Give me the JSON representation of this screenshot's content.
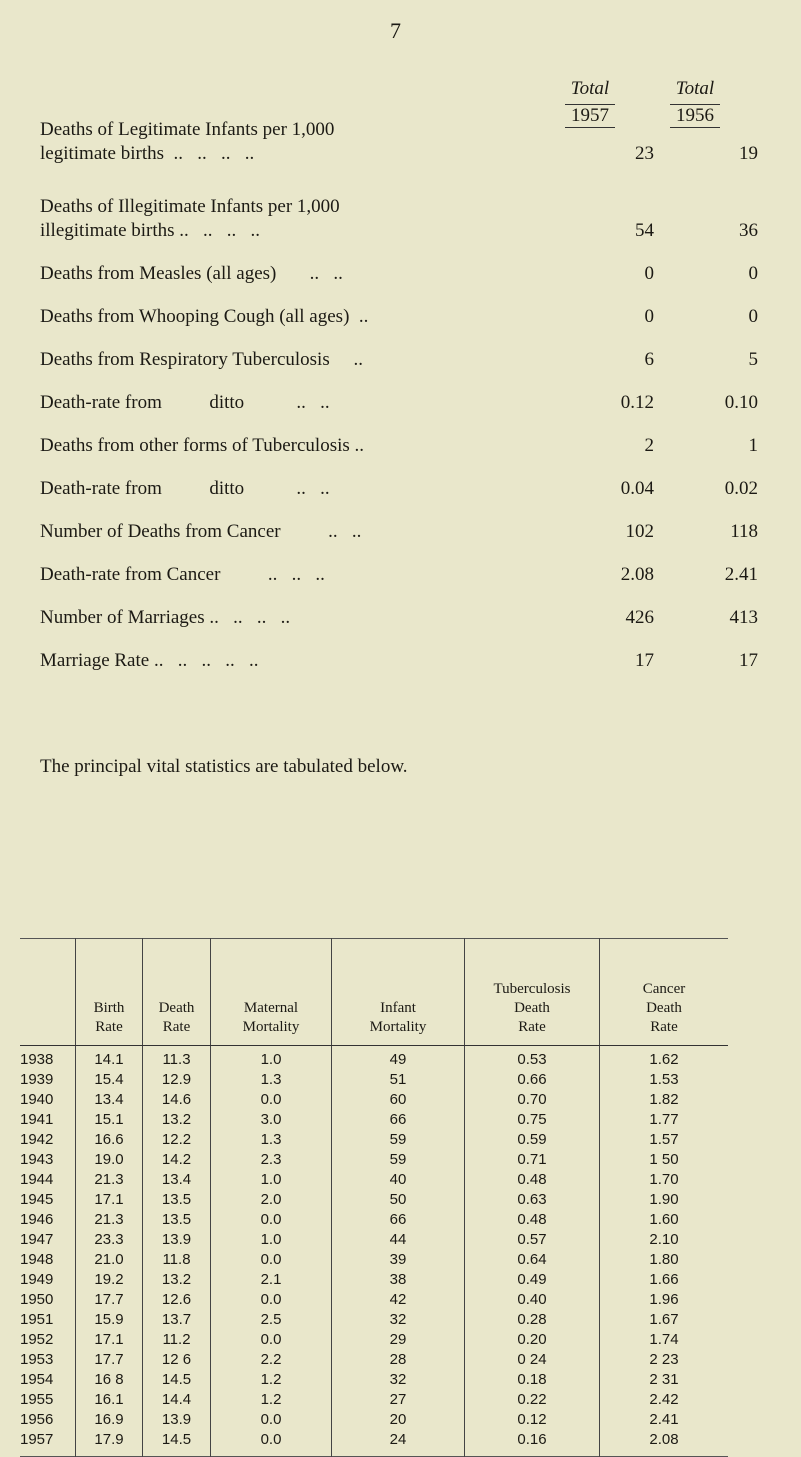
{
  "page_number": "7",
  "summary": {
    "columns": [
      {
        "label": "Total",
        "year": "1957"
      },
      {
        "label": "Total",
        "year": "1956"
      }
    ],
    "rows": [
      {
        "label_line1": "Deaths of Legitimate Infants per 1,000",
        "label": "legitimate births  ..   ..   ..   ..",
        "v1957": "23",
        "v1956": "19"
      },
      {
        "label_line1": "Deaths of Illegitimate Infants per 1,000",
        "label": "illegitimate births ..   ..   ..   ..",
        "v1957": "54",
        "v1956": "36"
      },
      {
        "label": "Deaths from Measles (all ages)       ..   ..",
        "v1957": "0",
        "v1956": "0"
      },
      {
        "label": "Deaths from Whooping Cough (all ages)  ..",
        "v1957": "0",
        "v1956": "0"
      },
      {
        "label": "Deaths from Respiratory Tuberculosis     ..",
        "v1957": "6",
        "v1956": "5"
      },
      {
        "label": "Death-rate from          ditto           ..   ..",
        "v1957": "0.12",
        "v1956": "0.10"
      },
      {
        "label": "Deaths from other forms of Tuberculosis ..",
        "v1957": "2",
        "v1956": "1"
      },
      {
        "label": "Death-rate from          ditto           ..   ..",
        "v1957": "0.04",
        "v1956": "0.02"
      },
      {
        "label": "Number of Deaths from Cancer          ..   ..",
        "v1957": "102",
        "v1956": "118"
      },
      {
        "label": "Death-rate from Cancer          ..   ..   ..",
        "v1957": "2.08",
        "v1956": "2.41"
      },
      {
        "label": "Number of Marriages ..   ..   ..   ..",
        "v1957": "426",
        "v1956": "413"
      },
      {
        "label": "Marriage Rate ..   ..   ..   ..   ..",
        "v1957": "17",
        "v1956": "17"
      }
    ]
  },
  "sentence": "The principal vital statistics are tabulated below.",
  "vital_table": {
    "headers": [
      {
        "l1": "",
        "l2": "",
        "l3": ""
      },
      {
        "l1": "",
        "l2": "Birth",
        "l3": "Rate"
      },
      {
        "l1": "",
        "l2": "Death",
        "l3": "Rate"
      },
      {
        "l1": "",
        "l2": "Maternal",
        "l3": "Mortality"
      },
      {
        "l1": "",
        "l2": "Infant",
        "l3": "Mortality"
      },
      {
        "l1": "Tuberculosis",
        "l2": "Death",
        "l3": "Rate"
      },
      {
        "l1": "Cancer",
        "l2": "Death",
        "l3": "Rate"
      }
    ],
    "rows": [
      [
        "1938",
        "14.1",
        "11.3",
        "1.0",
        "49",
        "0.53",
        "1.62"
      ],
      [
        "1939",
        "15.4",
        "12.9",
        "1.3",
        "51",
        "0.66",
        "1.53"
      ],
      [
        "1940",
        "13.4",
        "14.6",
        "0.0",
        "60",
        "0.70",
        "1.82"
      ],
      [
        "1941",
        "15.1",
        "13.2",
        "3.0",
        "66",
        "0.75",
        "1.77"
      ],
      [
        "1942",
        "16.6",
        "12.2",
        "1.3",
        "59",
        "0.59",
        "1.57"
      ],
      [
        "1943",
        "19.0",
        "14.2",
        "2.3",
        "59",
        "0.71",
        "1 50"
      ],
      [
        "1944",
        "21.3",
        "13.4",
        "1.0",
        "40",
        "0.48",
        "1.70"
      ],
      [
        "1945",
        "17.1",
        "13.5",
        "2.0",
        "50",
        "0.63",
        "1.90"
      ],
      [
        "1946",
        "21.3",
        "13.5",
        "0.0",
        "66",
        "0.48",
        "1.60"
      ],
      [
        "1947",
        "23.3",
        "13.9",
        "1.0",
        "44",
        "0.57",
        "2.10"
      ],
      [
        "1948",
        "21.0",
        "11.8",
        "0.0",
        "39",
        "0.64",
        "1.80"
      ],
      [
        "1949",
        "19.2",
        "13.2",
        "2.1",
        "38",
        "0.49",
        "1.66"
      ],
      [
        "1950",
        "17.7",
        "12.6",
        "0.0",
        "42",
        "0.40",
        "1.96"
      ],
      [
        "1951",
        "15.9",
        "13.7",
        "2.5",
        "32",
        "0.28",
        "1.67"
      ],
      [
        "1952",
        "17.1",
        "11.2",
        "0.0",
        "29",
        "0.20",
        "1.74"
      ],
      [
        "1953",
        "17.7",
        "12 6",
        "2.2",
        "28",
        "0 24",
        "2 23"
      ],
      [
        "1954",
        "16 8",
        "14.5",
        "1.2",
        "32",
        "0.18",
        "2 31"
      ],
      [
        "1955",
        "16.1",
        "14.4",
        "1.2",
        "27",
        "0.22",
        "2.42"
      ],
      [
        "1956",
        "16.9",
        "13.9",
        "0.0",
        "20",
        "0.12",
        "2.41"
      ],
      [
        "1957",
        "17.9",
        "14.5",
        "0.0",
        "24",
        "0.16",
        "2.08"
      ]
    ]
  }
}
